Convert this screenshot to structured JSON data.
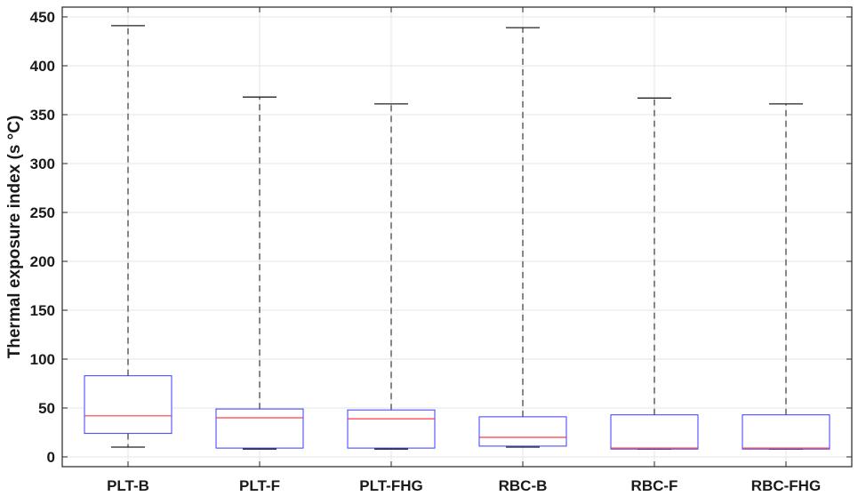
{
  "chart_data": {
    "type": "boxplot",
    "title": "",
    "xlabel": "",
    "ylabel": "Thermal exposure index (s °C)",
    "ylim": [
      -10,
      460
    ],
    "yticks": [
      0,
      50,
      100,
      150,
      200,
      250,
      300,
      350,
      400,
      450
    ],
    "grid": true,
    "categories": [
      "PLT-B",
      "PLT-F",
      "PLT-FHG",
      "RBC-B",
      "RBC-F",
      "RBC-FHG"
    ],
    "boxes": [
      {
        "category": "PLT-B",
        "whisker_low": 10,
        "q1": 24,
        "median": 42,
        "q3": 83,
        "whisker_high": 441
      },
      {
        "category": "PLT-F",
        "whisker_low": 8,
        "q1": 9,
        "median": 40,
        "q3": 49,
        "whisker_high": 368
      },
      {
        "category": "PLT-FHG",
        "whisker_low": 8,
        "q1": 9,
        "median": 39,
        "q3": 48,
        "whisker_high": 361
      },
      {
        "category": "RBC-B",
        "whisker_low": 10,
        "q1": 11,
        "median": 20,
        "q3": 41,
        "whisker_high": 439
      },
      {
        "category": "RBC-F",
        "whisker_low": 8,
        "q1": 8,
        "median": 9,
        "q3": 43,
        "whisker_high": 367
      },
      {
        "category": "RBC-FHG",
        "whisker_low": 8,
        "q1": 8,
        "median": 9,
        "q3": 43,
        "whisker_high": 361
      }
    ],
    "colors": {
      "box": "#3b3bff",
      "median": "#ff3b3b",
      "whisker": "#555555",
      "grid": "#e4e4e4",
      "axis": "#262626"
    }
  }
}
